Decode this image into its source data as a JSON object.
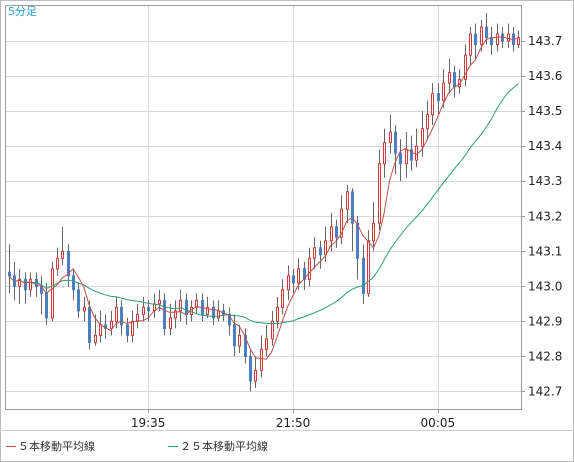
{
  "chart_data": {
    "type": "candlestick",
    "timeframe_label": "5分足",
    "x_tick_labels": [
      "19:35",
      "21:50",
      "00:05"
    ],
    "y_tick_labels": [
      "143.7",
      "143.6",
      "143.5",
      "143.4",
      "143.3",
      "143.2",
      "143.1",
      "143.0",
      "142.9",
      "142.8",
      "142.7"
    ],
    "ylim": [
      142.65,
      143.8
    ],
    "grid": true,
    "legend_position": "bottom-left",
    "colors": {
      "up_body": "#ffffff",
      "up_border": "#d23a3a",
      "down_body": "#4a7fc0",
      "wick": "#666666",
      "ma5": "#c0504d",
      "ma25": "#2e9e6e",
      "grid": "#d9d9d9",
      "corner_label": "#2a9fd6"
    },
    "series": [
      {
        "name": "５本移動平均線",
        "color": "#c0504d"
      },
      {
        "name": "２５本移動平均線",
        "color": "#2e9e6e"
      }
    ],
    "candles": [
      [
        143.04,
        143.03,
        143.12,
        142.98
      ],
      [
        143.03,
        143.0,
        143.07,
        142.96
      ],
      [
        143.0,
        143.02,
        143.05,
        142.95
      ],
      [
        143.02,
        142.99,
        143.04,
        142.95
      ],
      [
        142.99,
        143.02,
        143.04,
        142.97
      ],
      [
        143.02,
        143.0,
        143.04,
        142.97
      ],
      [
        143.0,
        142.98,
        143.03,
        142.92
      ],
      [
        142.98,
        142.91,
        143.01,
        142.89
      ],
      [
        142.91,
        143.05,
        143.07,
        142.9
      ],
      [
        143.05,
        143.08,
        143.11,
        143.03
      ],
      [
        143.08,
        143.1,
        143.17,
        143.06
      ],
      [
        143.1,
        143.03,
        143.12,
        143.0
      ],
      [
        143.03,
        142.99,
        143.05,
        142.96
      ],
      [
        142.99,
        142.93,
        143.01,
        142.91
      ],
      [
        142.93,
        142.94,
        142.97,
        142.9
      ],
      [
        142.94,
        142.84,
        142.96,
        142.82
      ],
      [
        142.84,
        142.86,
        142.92,
        142.83
      ],
      [
        142.86,
        142.89,
        142.93,
        142.84
      ],
      [
        142.89,
        142.88,
        142.92,
        142.85
      ],
      [
        142.88,
        142.9,
        142.93,
        142.86
      ],
      [
        142.9,
        142.94,
        142.97,
        142.88
      ],
      [
        142.94,
        142.89,
        142.96,
        142.86
      ],
      [
        142.89,
        142.86,
        142.91,
        142.84
      ],
      [
        142.86,
        142.9,
        142.93,
        142.84
      ],
      [
        142.9,
        142.92,
        142.95,
        142.88
      ],
      [
        142.92,
        142.94,
        142.97,
        142.9
      ],
      [
        142.94,
        142.93,
        142.96,
        142.9
      ],
      [
        142.93,
        142.95,
        142.98,
        142.91
      ],
      [
        142.95,
        142.96,
        142.99,
        142.93
      ],
      [
        142.96,
        142.88,
        142.98,
        142.86
      ],
      [
        142.88,
        142.91,
        142.95,
        142.86
      ],
      [
        142.91,
        142.93,
        142.96,
        142.88
      ],
      [
        142.93,
        142.96,
        142.99,
        142.9
      ],
      [
        142.96,
        142.92,
        142.98,
        142.89
      ],
      [
        142.92,
        142.94,
        142.96,
        142.9
      ],
      [
        142.94,
        142.96,
        142.98,
        142.92
      ],
      [
        142.96,
        142.92,
        142.98,
        142.9
      ],
      [
        142.92,
        142.94,
        142.97,
        142.91
      ],
      [
        142.94,
        142.91,
        142.96,
        142.89
      ],
      [
        142.91,
        142.93,
        142.96,
        142.9
      ],
      [
        142.93,
        142.92,
        142.95,
        142.9
      ],
      [
        142.92,
        142.89,
        142.94,
        142.86
      ],
      [
        142.89,
        142.83,
        142.92,
        142.8
      ],
      [
        142.83,
        142.86,
        142.89,
        142.81
      ],
      [
        142.86,
        142.8,
        142.88,
        142.78
      ],
      [
        142.8,
        142.73,
        142.82,
        142.7
      ],
      [
        142.73,
        142.76,
        142.8,
        142.71
      ],
      [
        142.76,
        142.82,
        142.86,
        142.74
      ],
      [
        142.82,
        142.85,
        142.89,
        142.8
      ],
      [
        142.85,
        142.9,
        142.93,
        142.83
      ],
      [
        142.9,
        142.94,
        142.97,
        142.88
      ],
      [
        142.94,
        142.99,
        143.02,
        142.92
      ],
      [
        142.99,
        143.03,
        143.06,
        142.96
      ],
      [
        143.03,
        143.01,
        143.05,
        142.98
      ],
      [
        143.01,
        143.05,
        143.08,
        142.99
      ],
      [
        143.05,
        143.02,
        143.07,
        142.99
      ],
      [
        143.02,
        143.08,
        143.11,
        143.0
      ],
      [
        143.08,
        143.11,
        143.14,
        143.05
      ],
      [
        143.11,
        143.09,
        143.13,
        143.05
      ],
      [
        143.09,
        143.13,
        143.17,
        143.07
      ],
      [
        143.13,
        143.17,
        143.21,
        143.1
      ],
      [
        143.17,
        143.14,
        143.19,
        143.11
      ],
      [
        143.14,
        143.22,
        143.26,
        143.12
      ],
      [
        143.22,
        143.27,
        143.29,
        143.18
      ],
      [
        143.27,
        143.18,
        143.28,
        143.1
      ],
      [
        143.18,
        143.08,
        143.2,
        143.02
      ],
      [
        143.08,
        142.98,
        143.12,
        142.95
      ],
      [
        142.98,
        143.13,
        143.16,
        142.97
      ],
      [
        143.13,
        143.18,
        143.24,
        143.1
      ],
      [
        143.18,
        143.35,
        143.39,
        143.16
      ],
      [
        143.35,
        143.41,
        143.45,
        143.31
      ],
      [
        143.41,
        143.44,
        143.49,
        143.38
      ],
      [
        143.44,
        143.38,
        143.46,
        143.32
      ],
      [
        143.38,
        143.35,
        143.42,
        143.3
      ],
      [
        143.35,
        143.39,
        143.44,
        143.31
      ],
      [
        143.39,
        143.36,
        143.43,
        143.33
      ],
      [
        143.36,
        143.4,
        143.45,
        143.34
      ],
      [
        143.4,
        143.45,
        143.5,
        143.37
      ],
      [
        143.45,
        143.49,
        143.53,
        143.42
      ],
      [
        143.49,
        143.55,
        143.58,
        143.46
      ],
      [
        143.55,
        143.53,
        143.58,
        143.49
      ],
      [
        143.53,
        143.58,
        143.62,
        143.51
      ],
      [
        143.58,
        143.61,
        143.65,
        143.55
      ],
      [
        143.61,
        143.57,
        143.63,
        143.54
      ],
      [
        143.57,
        143.59,
        143.62,
        143.55
      ],
      [
        143.59,
        143.66,
        143.69,
        143.57
      ],
      [
        143.66,
        143.72,
        143.74,
        143.63
      ],
      [
        143.72,
        143.69,
        143.75,
        143.65
      ],
      [
        143.69,
        143.74,
        143.76,
        143.67
      ],
      [
        143.74,
        143.71,
        143.78,
        143.69
      ],
      [
        143.71,
        143.69,
        143.74,
        143.66
      ],
      [
        143.69,
        143.72,
        143.75,
        143.67
      ],
      [
        143.72,
        143.7,
        143.74,
        143.68
      ],
      [
        143.7,
        143.72,
        143.75,
        143.68
      ],
      [
        143.72,
        143.69,
        143.74,
        143.67
      ],
      [
        143.69,
        143.71,
        143.73,
        143.68
      ]
    ]
  },
  "legend": [
    {
      "label": "５本移動平均線",
      "color": "#c0504d"
    },
    {
      "label": "２５本移動平均線",
      "color": "#2e9e6e"
    }
  ]
}
